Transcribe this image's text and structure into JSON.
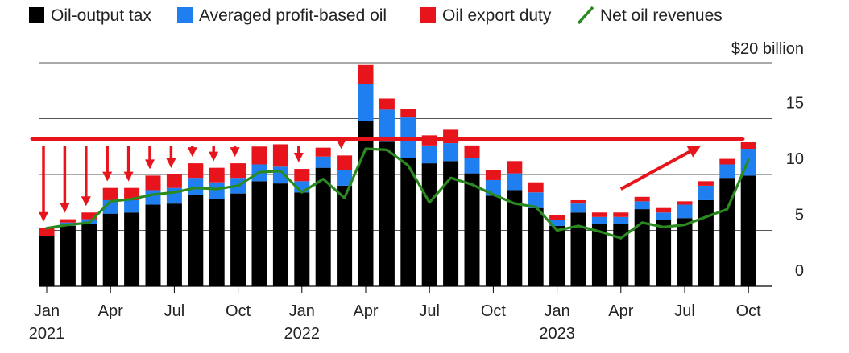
{
  "chart_data": {
    "type": "bar",
    "stacked": true,
    "y_unit_label": "$20 billion",
    "ylim": [
      0,
      20
    ],
    "y_ticks": [
      0,
      5,
      10,
      15
    ],
    "y_tick_labels": [
      "0",
      "5",
      "10",
      "15"
    ],
    "grid": true,
    "legend_position": "top-left",
    "categories": [
      "2021-01",
      "2021-02",
      "2021-03",
      "2021-04",
      "2021-05",
      "2021-06",
      "2021-07",
      "2021-08",
      "2021-09",
      "2021-10",
      "2021-11",
      "2021-12",
      "2022-01",
      "2022-02",
      "2022-03",
      "2022-04",
      "2022-05",
      "2022-06",
      "2022-07",
      "2022-08",
      "2022-09",
      "2022-10",
      "2022-11",
      "2022-12",
      "2023-01",
      "2023-02",
      "2023-03",
      "2023-04",
      "2023-05",
      "2023-06",
      "2023-07",
      "2023-08",
      "2023-09",
      "2023-10"
    ],
    "x_ticks": [
      {
        "index": 0,
        "month": "Jan",
        "year": "2021"
      },
      {
        "index": 3,
        "month": "Apr",
        "year": ""
      },
      {
        "index": 6,
        "month": "Jul",
        "year": ""
      },
      {
        "index": 9,
        "month": "Oct",
        "year": ""
      },
      {
        "index": 12,
        "month": "Jan",
        "year": "2022"
      },
      {
        "index": 15,
        "month": "Apr",
        "year": ""
      },
      {
        "index": 18,
        "month": "Jul",
        "year": ""
      },
      {
        "index": 21,
        "month": "Oct",
        "year": ""
      },
      {
        "index": 24,
        "month": "Jan",
        "year": "2023"
      },
      {
        "index": 27,
        "month": "Apr",
        "year": ""
      },
      {
        "index": 30,
        "month": "Jul",
        "year": ""
      },
      {
        "index": 33,
        "month": "Oct",
        "year": ""
      }
    ],
    "series": [
      {
        "name": "Oil-output tax",
        "kind": "bar",
        "color": "#000000",
        "values": [
          4.5,
          5.4,
          5.6,
          6.5,
          6.6,
          7.3,
          7.4,
          8.2,
          7.8,
          8.3,
          9.4,
          9.2,
          8.4,
          10.6,
          9.0,
          14.8,
          13.0,
          11.5,
          11.0,
          11.2,
          10.1,
          8.1,
          8.6,
          7.0,
          5.4,
          6.6,
          5.6,
          5.6,
          6.9,
          5.9,
          6.1,
          7.7,
          9.7,
          9.9
        ]
      },
      {
        "name": "Averaged profit-based oil",
        "kind": "bar",
        "color": "#1f7ff0",
        "values": [
          0.0,
          0.3,
          0.4,
          1.2,
          1.1,
          1.3,
          1.4,
          1.5,
          1.5,
          1.4,
          1.5,
          1.5,
          1.0,
          1.0,
          1.4,
          3.3,
          2.8,
          3.6,
          1.6,
          1.6,
          1.4,
          1.4,
          1.5,
          1.4,
          0.5,
          0.8,
          0.6,
          0.6,
          0.7,
          0.7,
          1.2,
          1.3,
          1.2,
          2.4
        ]
      },
      {
        "name": "Oil export duty",
        "kind": "bar",
        "color": "#e8141b",
        "values": [
          0.7,
          0.3,
          0.6,
          1.1,
          1.1,
          1.3,
          1.2,
          1.3,
          1.3,
          1.3,
          1.6,
          2.0,
          1.1,
          0.8,
          1.3,
          1.7,
          1.0,
          0.8,
          0.9,
          1.2,
          1.1,
          0.9,
          1.1,
          0.9,
          0.5,
          0.3,
          0.4,
          0.4,
          0.4,
          0.4,
          0.3,
          0.4,
          0.5,
          0.6
        ]
      },
      {
        "name": "Net oil revenues",
        "kind": "line",
        "color": "#2a8a1f",
        "values": [
          5.2,
          5.5,
          5.7,
          7.6,
          7.8,
          8.2,
          8.4,
          8.8,
          8.7,
          9.0,
          10.2,
          10.3,
          8.4,
          9.6,
          7.9,
          12.3,
          12.2,
          10.8,
          7.5,
          9.7,
          9.1,
          8.2,
          7.4,
          7.1,
          5.0,
          5.4,
          4.9,
          4.3,
          5.7,
          5.3,
          5.5,
          6.2,
          6.9,
          11.3
        ]
      }
    ],
    "annotations": {
      "color": "#e8141b",
      "horizontal_line_value": 13.2,
      "down_arrow_months": [
        "2021-01",
        "2021-02",
        "2021-03",
        "2021-04",
        "2021-05",
        "2021-06",
        "2021-07",
        "2021-08",
        "2021-09",
        "2021-10",
        "2022-01",
        "2022-03"
      ],
      "up_arrow": {
        "from_month": "2023-04",
        "from_value": 8.7,
        "to_month": "2023-08",
        "to_value": 12.6
      }
    }
  }
}
